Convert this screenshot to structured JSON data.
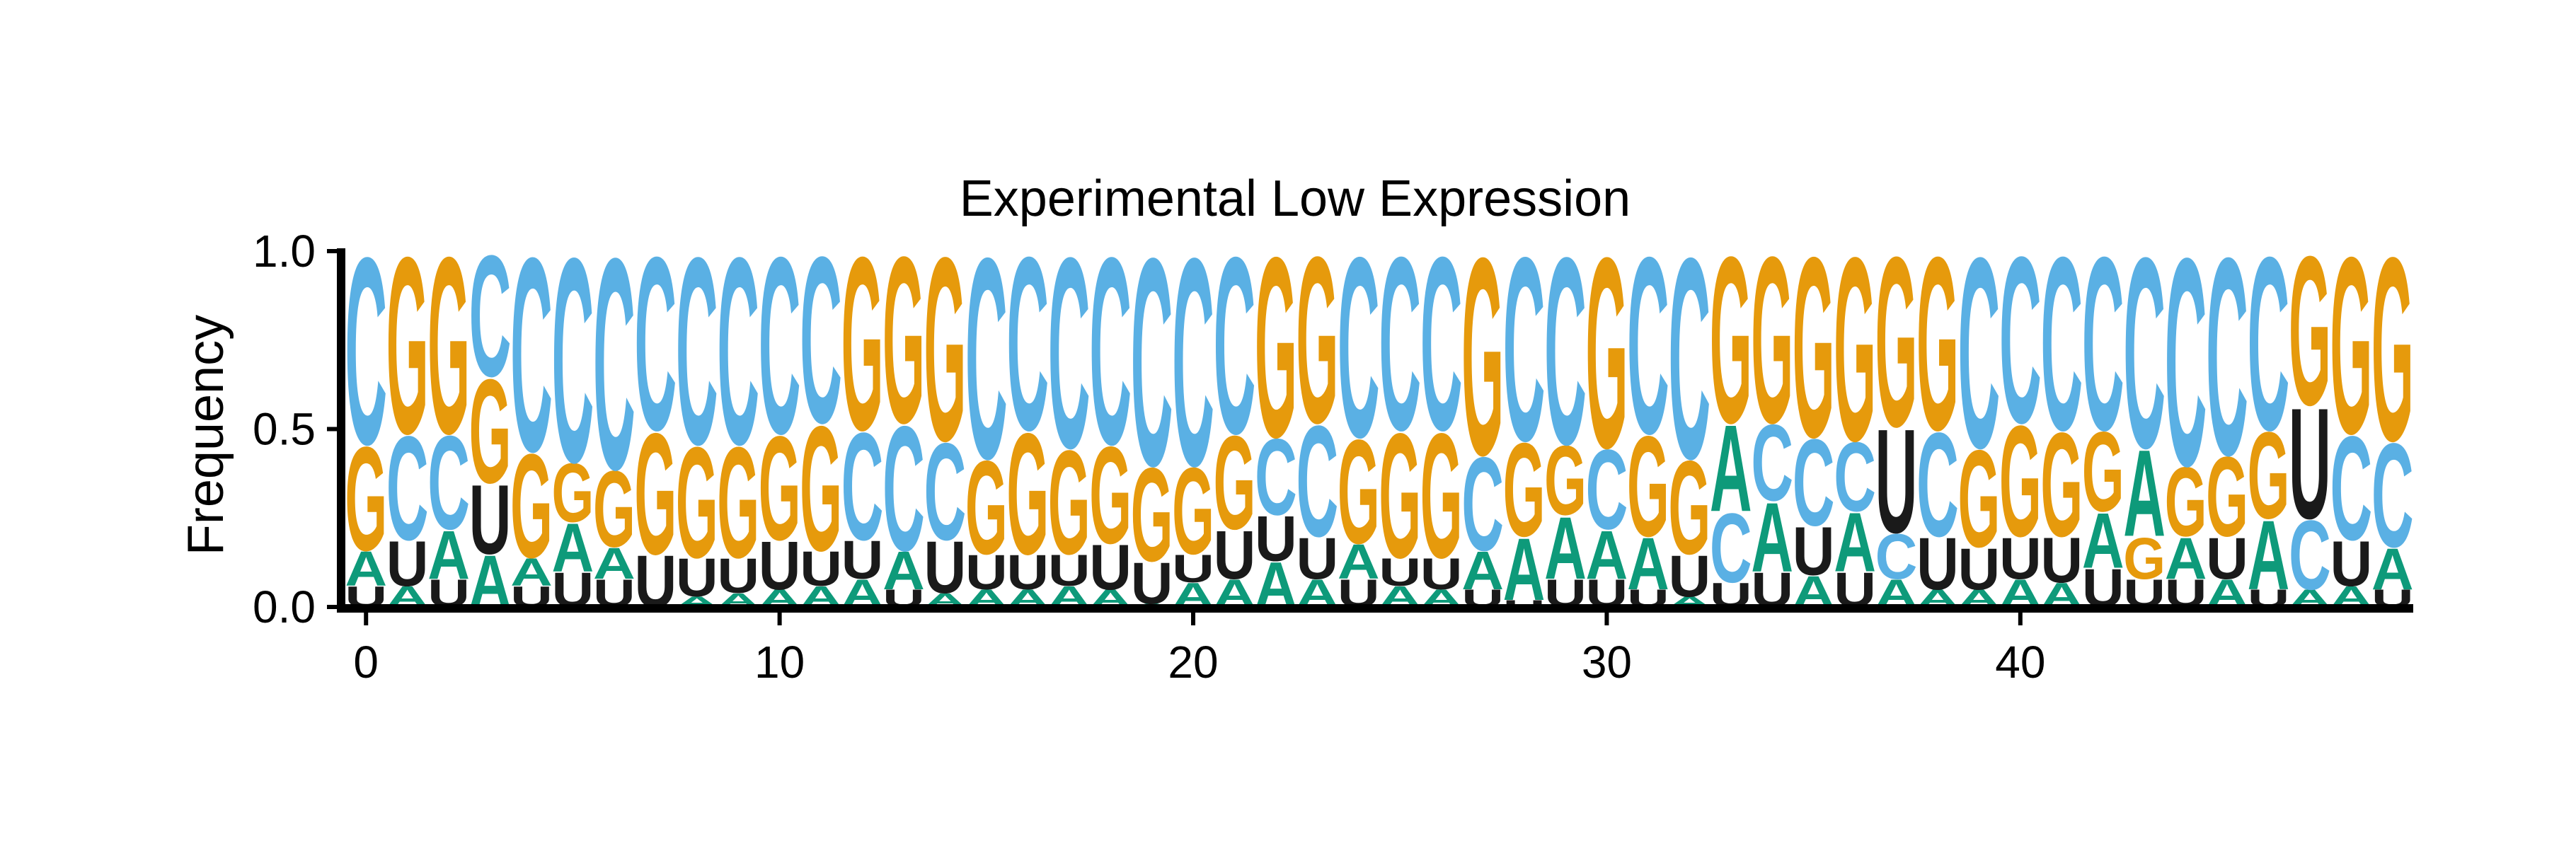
{
  "chart_data": {
    "type": "sequence-logo",
    "title": "Experimental Low Expression",
    "xlabel": "",
    "ylabel": "Frequency",
    "xlim": [
      -0.5,
      49.5
    ],
    "ylim": [
      0,
      1
    ],
    "xticks": [
      0,
      10,
      20,
      30,
      40
    ],
    "xtick_labels": [
      "0",
      "10",
      "20",
      "30",
      "40"
    ],
    "yticks": [
      0,
      0.5,
      1
    ],
    "ytick_labels": [
      "0.0",
      "0.5",
      "1.0"
    ],
    "grid": false,
    "colors": {
      "A": "#0e9a7a",
      "C": "#5ab0e4",
      "G": "#e69a0c",
      "U": "#1a1a1a"
    },
    "positions": [
      {
        "C": 0.54,
        "G": 0.3,
        "A": 0.1,
        "U": 0.06
      },
      {
        "G": 0.51,
        "C": 0.3,
        "U": 0.13,
        "A": 0.06
      },
      {
        "G": 0.51,
        "C": 0.27,
        "A": 0.14,
        "U": 0.08
      },
      {
        "G": 0.3,
        "C": 0.35,
        "U": 0.2,
        "A": 0.15
      },
      {
        "C": 0.56,
        "G": 0.3,
        "A": 0.08,
        "U": 0.06
      },
      {
        "C": 0.59,
        "G": 0.17,
        "A": 0.14,
        "U": 0.1
      },
      {
        "C": 0.61,
        "G": 0.22,
        "A": 0.09,
        "U": 0.08
      },
      {
        "C": 0.5,
        "G": 0.35,
        "U": 0.15,
        "A": 0.0
      },
      {
        "C": 0.54,
        "G": 0.32,
        "U": 0.11,
        "A": 0.03
      },
      {
        "C": 0.54,
        "G": 0.32,
        "U": 0.1,
        "A": 0.04
      },
      {
        "C": 0.51,
        "G": 0.3,
        "U": 0.14,
        "A": 0.05
      },
      {
        "C": 0.48,
        "G": 0.36,
        "U": 0.1,
        "A": 0.06
      },
      {
        "G": 0.5,
        "C": 0.31,
        "U": 0.11,
        "A": 0.08
      },
      {
        "G": 0.48,
        "C": 0.36,
        "A": 0.11,
        "U": 0.05
      },
      {
        "G": 0.53,
        "C": 0.28,
        "U": 0.15,
        "A": 0.04
      },
      {
        "C": 0.58,
        "G": 0.27,
        "U": 0.1,
        "A": 0.05
      },
      {
        "C": 0.5,
        "G": 0.35,
        "U": 0.1,
        "A": 0.05
      },
      {
        "C": 0.55,
        "G": 0.3,
        "U": 0.09,
        "A": 0.06
      },
      {
        "C": 0.54,
        "G": 0.28,
        "U": 0.13,
        "A": 0.05
      },
      {
        "C": 0.6,
        "G": 0.27,
        "U": 0.12,
        "A": 0.01
      },
      {
        "C": 0.6,
        "G": 0.25,
        "U": 0.08,
        "A": 0.07
      },
      {
        "C": 0.51,
        "G": 0.27,
        "U": 0.14,
        "A": 0.08
      },
      {
        "G": 0.52,
        "C": 0.22,
        "A": 0.13,
        "U": 0.13
      },
      {
        "G": 0.48,
        "C": 0.32,
        "U": 0.12,
        "A": 0.08
      },
      {
        "C": 0.52,
        "G": 0.3,
        "A": 0.1,
        "U": 0.08
      },
      {
        "C": 0.5,
        "G": 0.36,
        "U": 0.08,
        "A": 0.06
      },
      {
        "C": 0.5,
        "G": 0.36,
        "U": 0.09,
        "A": 0.05
      },
      {
        "G": 0.57,
        "C": 0.27,
        "A": 0.11,
        "U": 0.05
      },
      {
        "C": 0.53,
        "G": 0.27,
        "A": 0.18,
        "U": 0.02
      },
      {
        "C": 0.54,
        "G": 0.2,
        "A": 0.18,
        "U": 0.08
      },
      {
        "G": 0.55,
        "C": 0.23,
        "A": 0.14,
        "U": 0.08
      },
      {
        "C": 0.51,
        "G": 0.29,
        "A": 0.15,
        "U": 0.05
      },
      {
        "C": 0.58,
        "G": 0.27,
        "U": 0.12,
        "A": 0.03
      },
      {
        "G": 0.48,
        "A": 0.25,
        "C": 0.2,
        "U": 0.07
      },
      {
        "G": 0.48,
        "A": 0.2,
        "C": 0.22,
        "U": 0.1
      },
      {
        "G": 0.52,
        "C": 0.25,
        "U": 0.14,
        "A": 0.09
      },
      {
        "G": 0.53,
        "C": 0.2,
        "A": 0.17,
        "U": 0.1
      },
      {
        "G": 0.49,
        "U": 0.3,
        "C": 0.13,
        "A": 0.08
      },
      {
        "G": 0.5,
        "C": 0.3,
        "U": 0.15,
        "A": 0.05
      },
      {
        "C": 0.55,
        "G": 0.28,
        "U": 0.12,
        "A": 0.05
      },
      {
        "C": 0.48,
        "G": 0.32,
        "U": 0.12,
        "A": 0.08
      },
      {
        "C": 0.5,
        "G": 0.3,
        "U": 0.13,
        "A": 0.07
      },
      {
        "C": 0.5,
        "G": 0.23,
        "A": 0.16,
        "U": 0.11
      },
      {
        "C": 0.55,
        "A": 0.25,
        "G": 0.12,
        "U": 0.08
      },
      {
        "C": 0.6,
        "G": 0.2,
        "A": 0.12,
        "U": 0.08
      },
      {
        "C": 0.57,
        "G": 0.23,
        "U": 0.12,
        "A": 0.08
      },
      {
        "C": 0.5,
        "G": 0.25,
        "A": 0.2,
        "U": 0.05
      },
      {
        "G": 0.43,
        "U": 0.32,
        "C": 0.2,
        "A": 0.05
      },
      {
        "G": 0.51,
        "C": 0.3,
        "U": 0.13,
        "A": 0.06
      },
      {
        "G": 0.53,
        "C": 0.3,
        "A": 0.12,
        "U": 0.05
      }
    ]
  }
}
